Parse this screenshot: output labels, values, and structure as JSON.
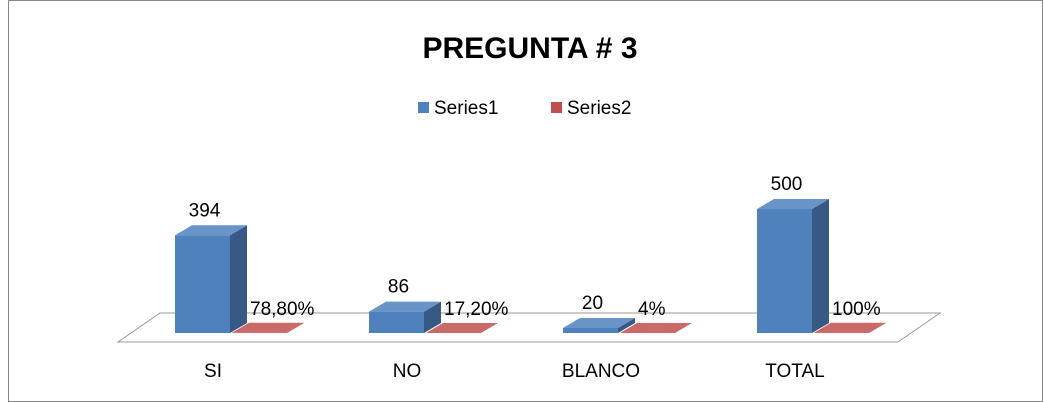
{
  "chart_data": {
    "type": "bar3d",
    "title": "PREGUNTA # 3",
    "categories": [
      "SI",
      "NO",
      "BLANCO",
      "TOTAL"
    ],
    "series": [
      {
        "name": "Series1",
        "color": "#4f81bd",
        "values": [
          394,
          86,
          20,
          500
        ]
      },
      {
        "name": "Series2",
        "color": "#c0504d",
        "values": [
          0.788,
          0.172,
          0.04,
          1
        ],
        "value_labels": [
          "78,80%",
          "17,20%",
          "4%",
          "100%"
        ]
      }
    ],
    "legend": "top"
  }
}
